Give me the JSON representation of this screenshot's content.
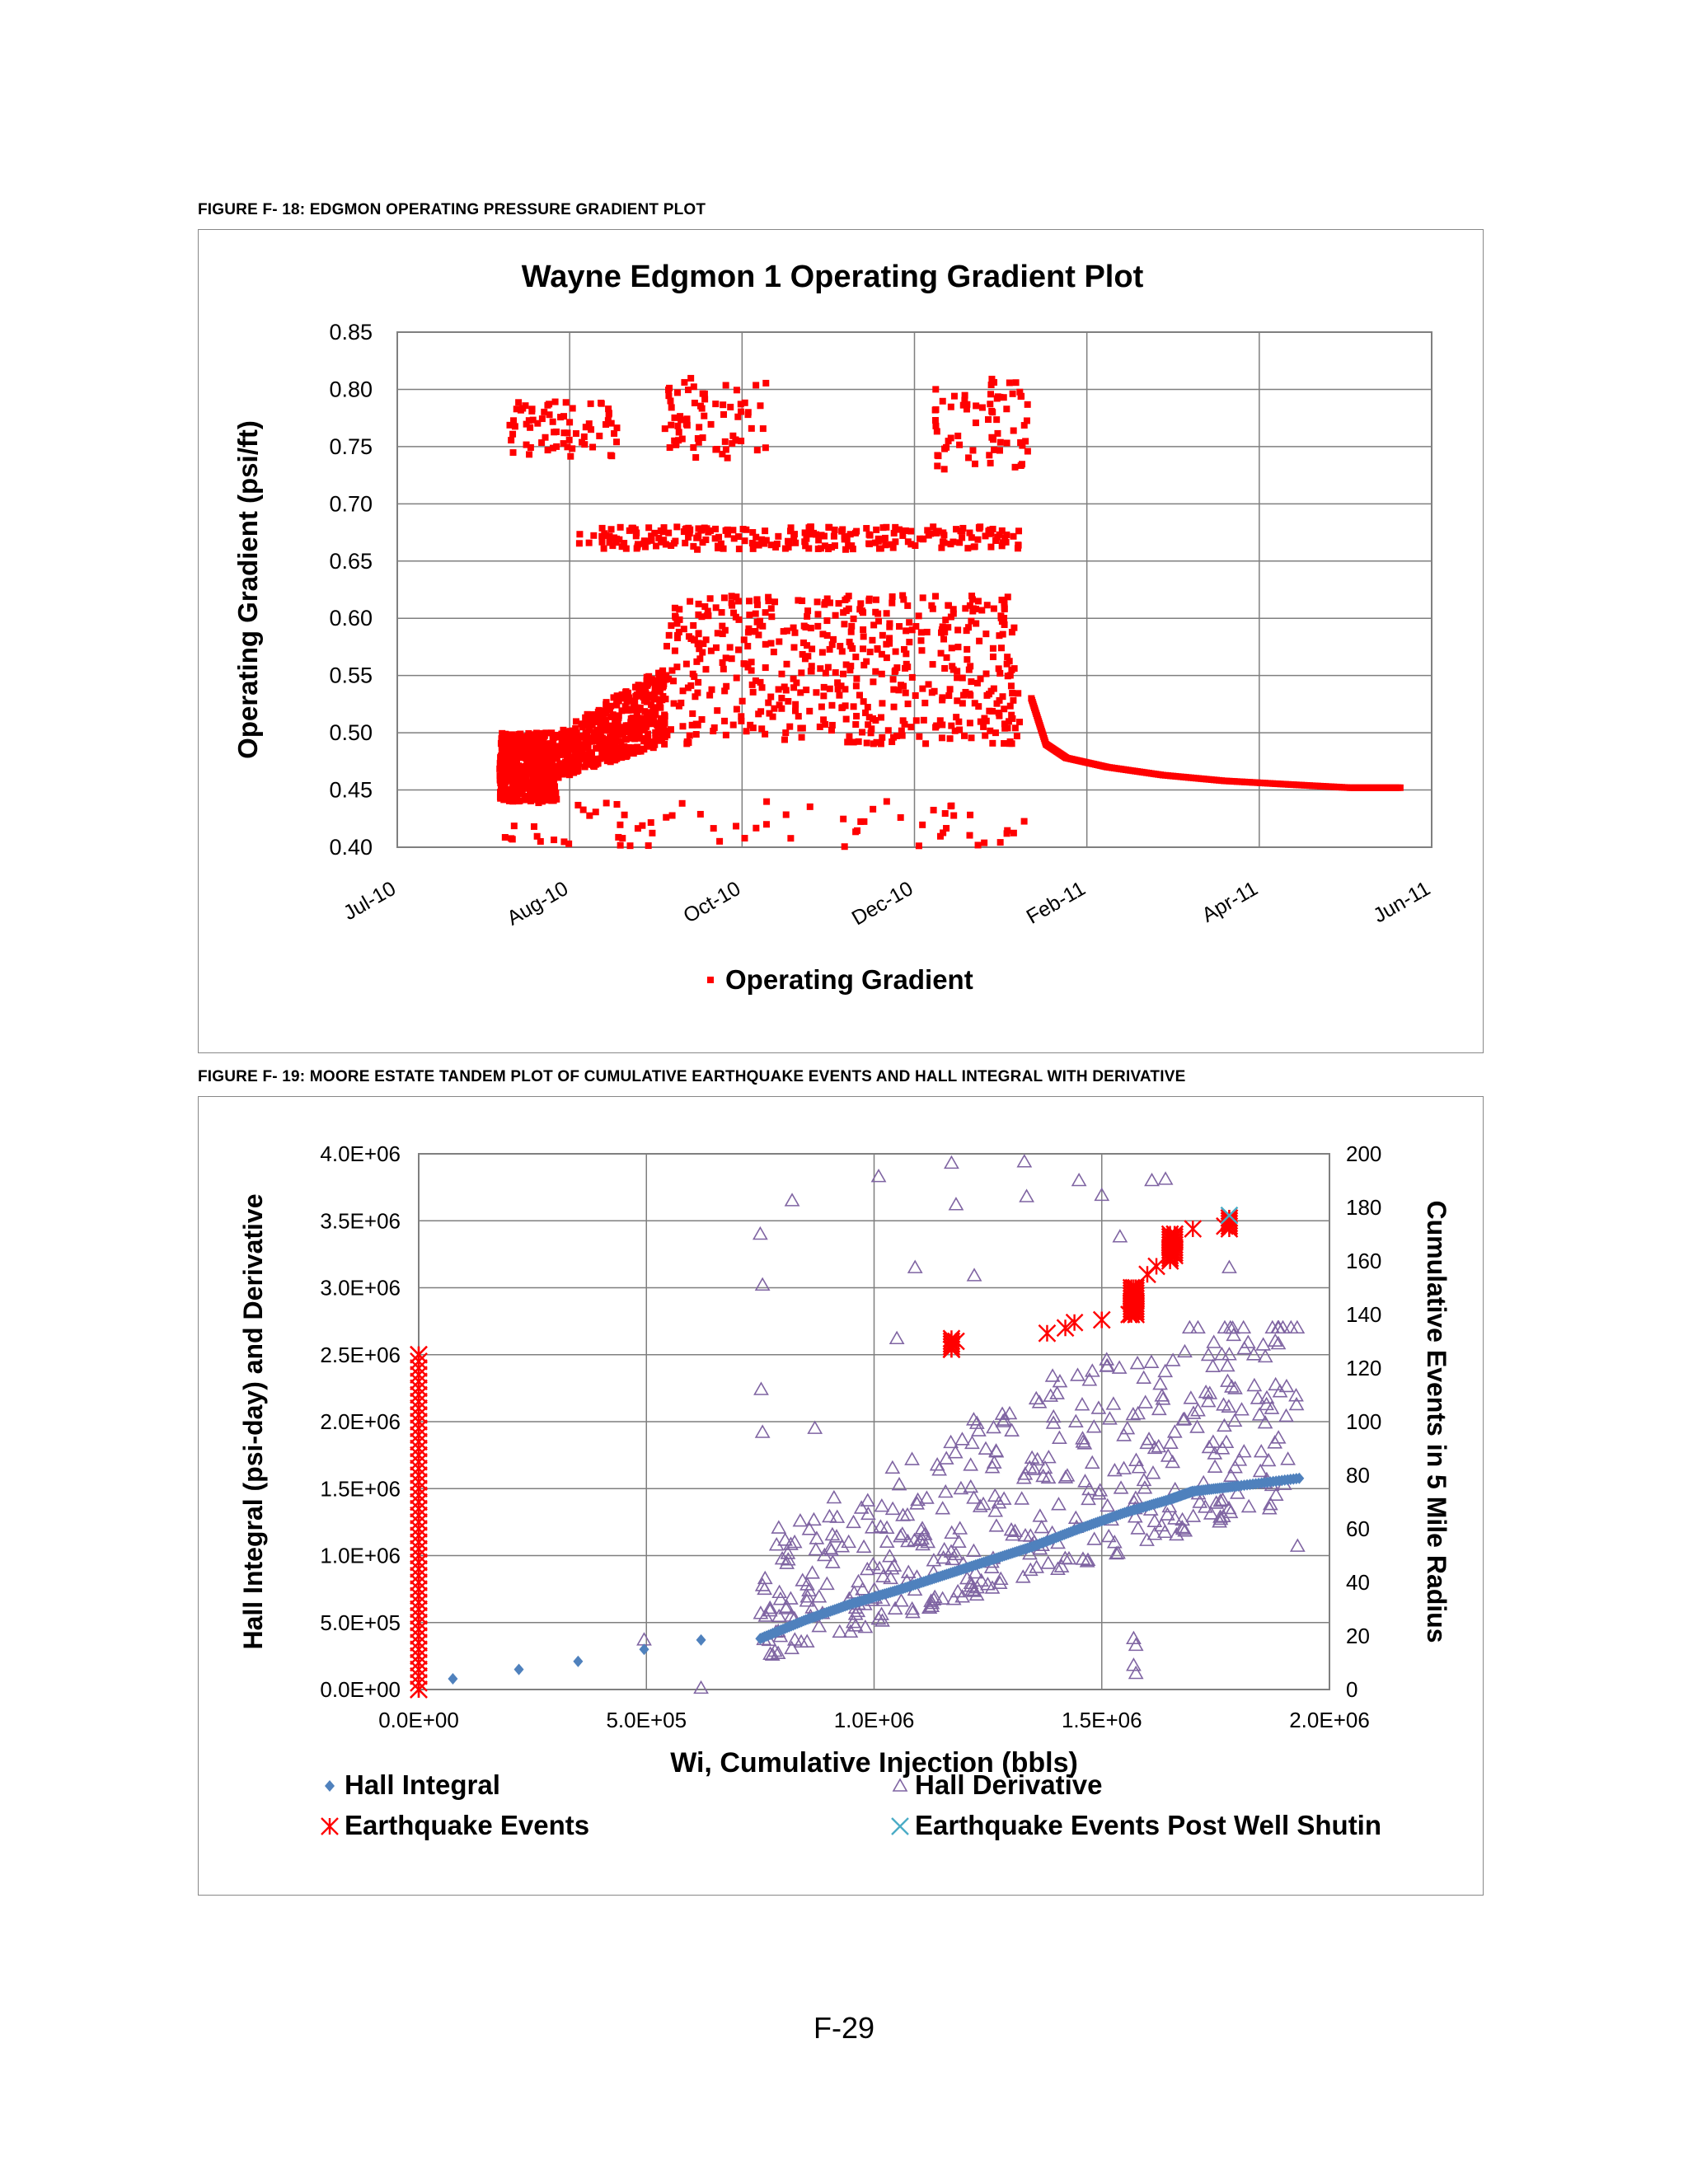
{
  "page": {
    "number": "F-29"
  },
  "figure1": {
    "caption": "FIGURE F- 18: EDGMON OPERATING PRESSURE GRADIENT PLOT",
    "legend": [
      {
        "label": "Operating Gradient",
        "marker": "square",
        "color": "#ff0000"
      }
    ]
  },
  "figure2": {
    "caption": "FIGURE F- 19: MOORE ESTATE TANDEM PLOT OF CUMULATIVE EARTHQUAKE EVENTS AND HALL INTEGRAL WITH DERIVATIVE",
    "legend": [
      {
        "label": "Hall Integral",
        "marker": "diamond",
        "color": "#4f81bd"
      },
      {
        "label": "Hall Derivative",
        "marker": "triangle",
        "color": "#7f64a2"
      },
      {
        "label": "Earthquake Events",
        "marker": "asterisk",
        "color": "#ff0000"
      },
      {
        "label": "Earthquake Events Post Well Shutin",
        "marker": "cross",
        "color": "#4bacc6"
      }
    ]
  },
  "chart_data": [
    {
      "type": "scatter",
      "title": "Wayne Edgmon 1 Operating Gradient Plot",
      "xlabel": "",
      "ylabel": "Operating Gradient (psi/ft)",
      "x_ticks": [
        "Jul-10",
        "Aug-10",
        "Oct-10",
        "Dec-10",
        "Feb-11",
        "Apr-11",
        "Jun-11"
      ],
      "x_range": [
        "2010-07-01",
        "2011-06-20"
      ],
      "y_ticks": [
        "0.40",
        "0.45",
        "0.50",
        "0.55",
        "0.60",
        "0.65",
        "0.70",
        "0.75",
        "0.80",
        "0.85"
      ],
      "ylim": [
        0.4,
        0.85
      ],
      "grid": true,
      "legend_position": "bottom",
      "series": [
        {
          "name": "Operating Gradient",
          "color": "#ff0000",
          "data_regions": [
            {
              "date_start": "2010-08-05",
              "date_end": "2010-08-25",
              "y_min": 0.44,
              "y_max": 0.5,
              "note": "dense"
            },
            {
              "date_start": "2010-08-25",
              "date_end": "2010-10-01",
              "y_min": 0.46,
              "y_max": 0.55,
              "note": "dense, rising"
            },
            {
              "date_start": "2010-10-01",
              "date_end": "2011-01-30",
              "y_min": 0.49,
              "y_max": 0.62,
              "note": "dense"
            },
            {
              "date_start": "2010-09-01",
              "date_end": "2011-01-30",
              "y_min": 0.66,
              "y_max": 0.68,
              "note": "band"
            },
            {
              "date_start": "2010-08-08",
              "date_end": "2010-09-15",
              "y_min": 0.74,
              "y_max": 0.79,
              "note": "upper cluster"
            },
            {
              "date_start": "2010-09-30",
              "date_end": "2010-11-05",
              "y_min": 0.74,
              "y_max": 0.81,
              "note": "upper cluster"
            },
            {
              "date_start": "2011-01-01",
              "date_end": "2011-02-02",
              "y_min": 0.73,
              "y_max": 0.81,
              "note": "upper cluster"
            },
            {
              "date_start": "2010-08-05",
              "date_end": "2011-02-02",
              "y_min": 0.4,
              "y_max": 0.44,
              "note": "scattered low"
            }
          ],
          "decay_curve": [
            {
              "x": "2011-02-03",
              "y": 0.53
            },
            {
              "x": "2011-02-08",
              "y": 0.49
            },
            {
              "x": "2011-02-15",
              "y": 0.478
            },
            {
              "x": "2011-03-01",
              "y": 0.47
            },
            {
              "x": "2011-03-20",
              "y": 0.463
            },
            {
              "x": "2011-04-10",
              "y": 0.458
            },
            {
              "x": "2011-05-01",
              "y": 0.455
            },
            {
              "x": "2011-05-23",
              "y": 0.452
            },
            {
              "x": "2011-06-10",
              "y": 0.452
            }
          ]
        }
      ]
    },
    {
      "type": "scatter",
      "title": "",
      "xlabel": "Wi, Cumulative Injection (bbls)",
      "ylabel": "Hall Integral (psi-day) and Derivative",
      "y2label": "Cumulative Events in 5 Mile Radius",
      "x_ticks": [
        "0.0E+00",
        "5.0E+05",
        "1.0E+06",
        "1.5E+06",
        "2.0E+06"
      ],
      "xlim": [
        0,
        2000000
      ],
      "y_ticks": [
        "0.0E+00",
        "5.0E+05",
        "1.0E+06",
        "1.5E+06",
        "2.0E+06",
        "2.5E+06",
        "3.0E+06",
        "3.5E+06",
        "4.0E+06"
      ],
      "ylim": [
        0,
        4000000
      ],
      "y2_ticks": [
        "0",
        "20",
        "40",
        "60",
        "80",
        "100",
        "120",
        "140",
        "160",
        "180",
        "200"
      ],
      "y2lim": [
        0,
        200
      ],
      "grid": true,
      "legend_position": "bottom",
      "series": [
        {
          "name": "Hall Integral",
          "color": "#4f81bd",
          "points": [
            {
              "x": 75000,
              "y": 80000
            },
            {
              "x": 220000,
              "y": 150000
            },
            {
              "x": 350000,
              "y": 210000
            },
            {
              "x": 495000,
              "y": 300000
            },
            {
              "x": 620000,
              "y": 370000
            }
          ],
          "curve": [
            {
              "x": 750000,
              "y": 380000
            },
            {
              "x": 850000,
              "y": 520000
            },
            {
              "x": 950000,
              "y": 640000
            },
            {
              "x": 1050000,
              "y": 740000
            },
            {
              "x": 1150000,
              "y": 850000
            },
            {
              "x": 1250000,
              "y": 960000
            },
            {
              "x": 1350000,
              "y": 1070000
            },
            {
              "x": 1450000,
              "y": 1200000
            },
            {
              "x": 1550000,
              "y": 1320000
            },
            {
              "x": 1650000,
              "y": 1420000
            },
            {
              "x": 1700000,
              "y": 1480000
            },
            {
              "x": 1800000,
              "y": 1520000
            },
            {
              "x": 1940000,
              "y": 1580000
            }
          ]
        },
        {
          "name": "Hall Derivative",
          "color": "#7f64a2",
          "points": [
            {
              "x": 495000,
              "y": 370000
            },
            {
              "x": 620000,
              "y": 10000
            },
            {
              "x": 750000,
              "y": 3400000
            },
            {
              "x": 755000,
              "y": 3020000
            },
            {
              "x": 752000,
              "y": 2240000
            },
            {
              "x": 755000,
              "y": 1920000
            },
            {
              "x": 820000,
              "y": 3650000
            },
            {
              "x": 870000,
              "y": 1950000
            },
            {
              "x": 1010000,
              "y": 3830000
            },
            {
              "x": 1050000,
              "y": 2620000
            },
            {
              "x": 1090000,
              "y": 3150000
            },
            {
              "x": 1170000,
              "y": 3930000
            },
            {
              "x": 1180000,
              "y": 3620000
            },
            {
              "x": 1220000,
              "y": 3090000
            },
            {
              "x": 1330000,
              "y": 3940000
            },
            {
              "x": 1335000,
              "y": 3680000
            },
            {
              "x": 1450000,
              "y": 3800000
            },
            {
              "x": 1500000,
              "y": 3690000
            },
            {
              "x": 1540000,
              "y": 3380000
            },
            {
              "x": 1610000,
              "y": 3800000
            },
            {
              "x": 1640000,
              "y": 3810000
            },
            {
              "x": 1780000,
              "y": 3150000
            },
            {
              "x": 1780000,
              "y": 2500000
            },
            {
              "x": 1570000,
              "y": 380000
            },
            {
              "x": 1575000,
              "y": 330000
            },
            {
              "x": 1570000,
              "y": 180000
            },
            {
              "x": 1575000,
              "y": 120000
            },
            {
              "x": 1930000,
              "y": 1070000
            }
          ]
        },
        {
          "name": "Earthquake Events",
          "color": "#ff0000",
          "axis": "secondary",
          "points": [
            {
              "x": 0,
              "y": 0
            },
            {
              "x": 0,
              "y": 125
            },
            {
              "x": 1170000,
              "y": 127
            },
            {
              "x": 1180000,
              "y": 130
            },
            {
              "x": 1380000,
              "y": 133
            },
            {
              "x": 1420000,
              "y": 135
            },
            {
              "x": 1440000,
              "y": 137
            },
            {
              "x": 1500000,
              "y": 138
            },
            {
              "x": 1560000,
              "y": 140
            },
            {
              "x": 1570000,
              "y": 150
            },
            {
              "x": 1600000,
              "y": 155
            },
            {
              "x": 1620000,
              "y": 158
            },
            {
              "x": 1650000,
              "y": 165
            },
            {
              "x": 1660000,
              "y": 170
            },
            {
              "x": 1700000,
              "y": 172
            },
            {
              "x": 1770000,
              "y": 173
            },
            {
              "x": 1780000,
              "y": 176
            }
          ]
        },
        {
          "name": "Earthquake Events Post Well Shutin",
          "color": "#4bacc6",
          "axis": "secondary",
          "points": [
            {
              "x": 1780000,
              "y": 177
            }
          ]
        }
      ]
    }
  ]
}
